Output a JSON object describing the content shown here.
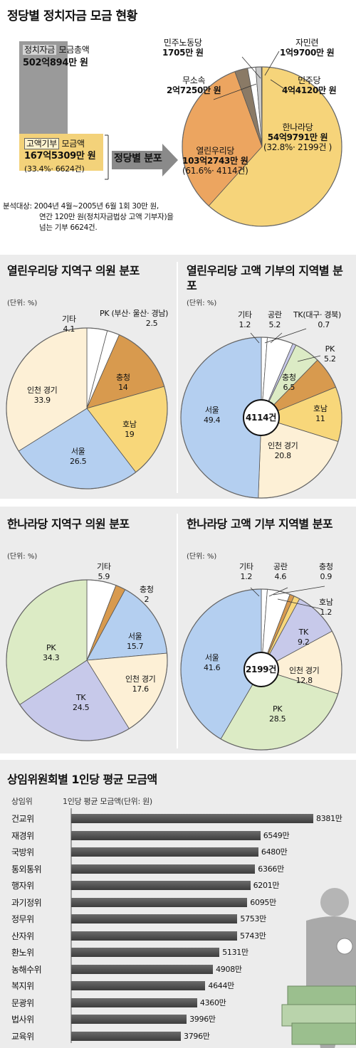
{
  "overview": {
    "title": "정당별 정치자금 모금 현황",
    "total_label_a": "정치자금",
    "total_label_b": "모금총액",
    "total_value": "502억894만 원",
    "high_label_a": "고액기부",
    "high_label_b": "모금액",
    "high_value": "167억5309만 원",
    "high_share": "(33.4%· 6624건)",
    "arrow_label": "정당별 분포",
    "note_1": "분석대상: 2004년 4월~2005년 6월 1회 30만 원,",
    "note_2": "연간 120만 원(정치자금법상 고액 기부자)을",
    "note_3": "넘는 기부 6624건.",
    "labels": {
      "democratic_labor": [
        "민주노동당",
        "1705만 원"
      ],
      "jaminryeon": [
        "자민련",
        "1억9700만 원"
      ],
      "independent": [
        "무소속",
        "2억7250만 원"
      ],
      "democratic": [
        "민주당",
        "4억4120만 원"
      ],
      "hannara": [
        "한나라당",
        "54억9791만 원",
        "(32.8%· 2199건 )"
      ],
      "uri": [
        "열린우리당",
        "103억2743만 원",
        "(61.6%· 4114건)"
      ]
    }
  },
  "chart_data": [
    {
      "type": "pie",
      "title": "정당별 정치자금 모금 현황",
      "labels": [
        "열린우리당",
        "한나라당",
        "민주당",
        "무소속",
        "자민련",
        "민주노동당"
      ],
      "values": [
        103.2743,
        54.9791,
        4.412,
        2.725,
        1.97,
        0.1705
      ],
      "unit": "억 원",
      "colors": [
        "#f6d47a",
        "#eca560",
        "#8a7a66",
        "#ffffff",
        "#c9c9c9",
        "#ffffff"
      ]
    },
    {
      "type": "pie",
      "title": "열린우리당 지역구 의원 분포",
      "unit_label": "(단위: %)",
      "labels": [
        "기타",
        "PK (부산· 울산· 경남)",
        "충청",
        "호남",
        "서울",
        "인천 경기"
      ],
      "values": [
        4.1,
        2.5,
        14.0,
        19.0,
        26.5,
        33.9
      ],
      "colors": [
        "#ffffff",
        "#ffffff",
        "#d89a4e",
        "#f8d77a",
        "#b4cff0",
        "#fdf0d6"
      ]
    },
    {
      "type": "pie",
      "title": "열린우리당 고액 기부의 지역별 분포",
      "unit_label": "(단위: %)",
      "center_label": "4114건",
      "labels": [
        "기타",
        "공란",
        "TK(대구· 경북)",
        "PK",
        "충청",
        "호남",
        "인천 경기",
        "서울"
      ],
      "values": [
        1.2,
        5.2,
        0.7,
        5.2,
        6.5,
        11.0,
        20.8,
        49.4
      ],
      "colors": [
        "#ffffff",
        "#ffffff",
        "#c7c9ea",
        "#dcebc5",
        "#d89a4e",
        "#f8d77a",
        "#fdf0d6",
        "#b4cff0"
      ]
    },
    {
      "type": "pie",
      "title": "한나라당 지역구 의원 분포",
      "unit_label": "(단위: %)",
      "labels": [
        "기타",
        "충청",
        "서울",
        "인천 경기",
        "TK",
        "PK"
      ],
      "values": [
        5.9,
        2.0,
        15.7,
        17.6,
        24.5,
        34.3
      ],
      "colors": [
        "#ffffff",
        "#d89a4e",
        "#b4cff0",
        "#fdf0d6",
        "#c7c9ea",
        "#dcebc5"
      ]
    },
    {
      "type": "pie",
      "title": "한나라당 고액 기부 지역별 분포",
      "unit_label": "(단위: %)",
      "center_label": "2199건",
      "labels": [
        "기타",
        "공란",
        "충청",
        "호남",
        "TK",
        "인천 경기",
        "PK",
        "서울"
      ],
      "values": [
        1.2,
        4.6,
        0.9,
        1.2,
        9.2,
        12.8,
        28.5,
        41.6
      ],
      "colors": [
        "#ffffff",
        "#ffffff",
        "#d89a4e",
        "#f8d77a",
        "#c7c9ea",
        "#fdf0d6",
        "#dcebc5",
        "#b4cff0"
      ]
    },
    {
      "type": "bar",
      "orientation": "horizontal",
      "title": "상임위원회별 1인당 평균 모금액",
      "xlabel": "1인당 평균 모금액(단위: 원)",
      "ylabel": "상임위",
      "categories": [
        "건교위",
        "재경위",
        "국방위",
        "통외통위",
        "행자위",
        "과기정위",
        "정무위",
        "산자위",
        "환노위",
        "농해수위",
        "복지위",
        "문광위",
        "법사위",
        "교육위"
      ],
      "values": [
        8381,
        6549,
        6480,
        6366,
        6201,
        6095,
        5753,
        5743,
        5131,
        4908,
        4644,
        4360,
        3996,
        3796
      ],
      "value_labels": [
        "8381만",
        "6549만",
        "6480만",
        "6366만",
        "6201만",
        "6095만",
        "5753만",
        "5743만",
        "5131만",
        "4908만",
        "4644만",
        "4360만",
        "3996만",
        "3796만"
      ],
      "value_unit": "만 원"
    }
  ]
}
